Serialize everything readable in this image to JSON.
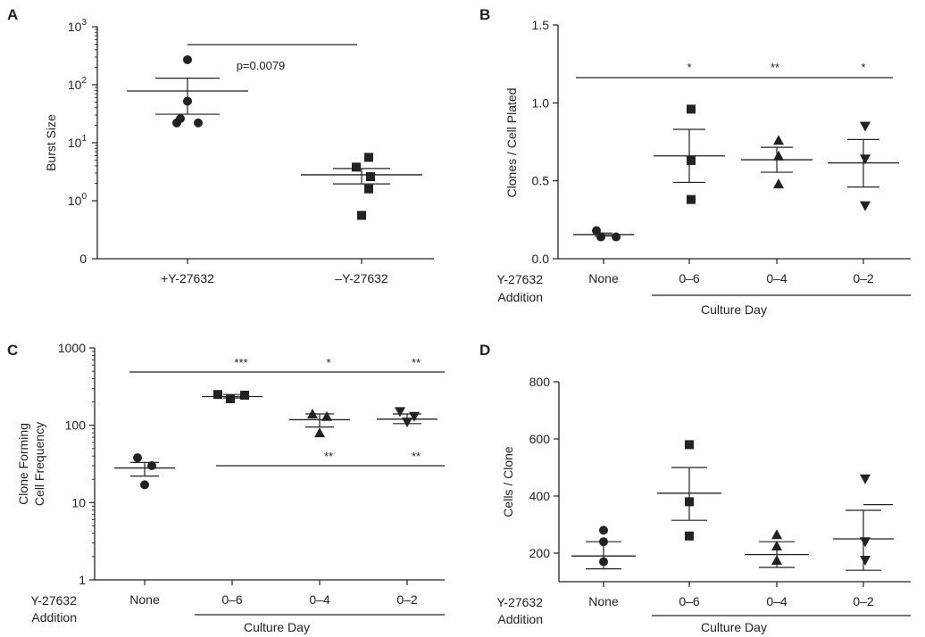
{
  "chart_data": [
    {
      "panel": "A",
      "type": "scatter",
      "ylabel": "Burst Size",
      "yscale": "log",
      "ylim": [
        0.01,
        1000
      ],
      "y_ticks": [
        {
          "v": 1000,
          "base": "10",
          "exp": "3"
        },
        {
          "v": 100,
          "base": "10",
          "exp": "2"
        },
        {
          "v": 10,
          "base": "10",
          "exp": "1"
        },
        {
          "v": 1,
          "base": "10",
          "exp": "0"
        },
        {
          "v": 0.01,
          "base": "0",
          "exp": ""
        }
      ],
      "categories": [
        "+Y-27632",
        "–Y-27632"
      ],
      "series": [
        {
          "marker": "circle",
          "values": [
            270,
            52,
            26,
            22,
            22
          ],
          "mean": 78,
          "err_hi": 130,
          "err_lo": 31
        },
        {
          "marker": "square",
          "values": [
            5.6,
            3.8,
            2.6,
            1.6,
            0.75
          ],
          "mean": 2.8,
          "err_hi": 3.6,
          "err_lo": 1.95
        }
      ],
      "annotations": [
        "p=0.0079"
      ]
    },
    {
      "panel": "B",
      "type": "scatter",
      "ylabel": "Clones / Cell Plated",
      "ylim": [
        0,
        1.5
      ],
      "y_ticks": [
        "0.0",
        "0.5",
        "1.0",
        "1.5"
      ],
      "row_label": [
        "Y-27632",
        "Addition"
      ],
      "group_label": "Culture Day",
      "categories": [
        "None",
        "0–6",
        "0–4",
        "0–2"
      ],
      "series": [
        {
          "marker": "circle",
          "values": [
            0.18,
            0.14,
            0.14
          ],
          "mean": 0.155,
          "err_hi": 0.165,
          "err_lo": 0.145
        },
        {
          "marker": "square",
          "values": [
            0.96,
            0.63,
            0.38
          ],
          "mean": 0.66,
          "err_hi": 0.83,
          "err_lo": 0.49
        },
        {
          "marker": "triangle-up",
          "values": [
            0.76,
            0.66,
            0.48
          ],
          "mean": 0.635,
          "err_hi": 0.715,
          "err_lo": 0.555
        },
        {
          "marker": "triangle-down",
          "values": [
            0.85,
            0.64,
            0.34
          ],
          "mean": 0.615,
          "err_hi": 0.765,
          "err_lo": 0.46
        }
      ],
      "significance": [
        "*",
        "**",
        "*"
      ]
    },
    {
      "panel": "C",
      "type": "scatter",
      "ylabel": [
        "Clone Forming",
        "Cell Frequency"
      ],
      "yscale": "log",
      "ylim": [
        1,
        1000
      ],
      "y_ticks": [
        "1",
        "10",
        "100",
        "1000"
      ],
      "row_label": [
        "Y-27632",
        "Addition"
      ],
      "group_label": "Culture Day",
      "categories": [
        "None",
        "0–6",
        "0–4",
        "0–2"
      ],
      "series": [
        {
          "marker": "circle",
          "values": [
            38,
            30,
            17
          ],
          "mean": 28,
          "err_hi": 33,
          "err_lo": 22
        },
        {
          "marker": "square",
          "values": [
            250,
            220,
            245
          ],
          "mean": 235,
          "err_hi": 250,
          "err_lo": 225
        },
        {
          "marker": "triangle-up",
          "values": [
            140,
            130,
            80
          ],
          "mean": 118,
          "err_hi": 140,
          "err_lo": 95
        },
        {
          "marker": "triangle-down",
          "values": [
            150,
            130,
            110
          ],
          "mean": 120,
          "err_hi": 140,
          "err_lo": 105
        }
      ],
      "significance_upper": [
        "***",
        "*",
        "**"
      ],
      "significance_lower": [
        "**",
        "**"
      ]
    },
    {
      "panel": "D",
      "type": "scatter",
      "ylabel": "Cells / Clone",
      "ylim": [
        100,
        800
      ],
      "y_ticks": [
        "200",
        "400",
        "600",
        "800"
      ],
      "row_label": [
        "Y-27632",
        "Addition"
      ],
      "group_label": "Culture Day",
      "categories": [
        "None",
        "0–6",
        "0–4",
        "0–2"
      ],
      "series": [
        {
          "marker": "circle",
          "values": [
            280,
            240,
            170
          ],
          "mean": 190,
          "err_hi": 240,
          "err_lo": 145
        },
        {
          "marker": "square",
          "values": [
            580,
            380,
            260
          ],
          "mean": 410,
          "err_hi": 500,
          "err_lo": 315
        },
        {
          "marker": "triangle-up",
          "values": [
            265,
            225,
            175
          ],
          "mean": 195,
          "err_hi": 240,
          "err_lo": 150
        },
        {
          "marker": "triangle-down",
          "values": [
            460,
            240,
            175
          ],
          "mean": 250,
          "err_hi": 350,
          "err_lo": 140
        }
      ]
    }
  ]
}
